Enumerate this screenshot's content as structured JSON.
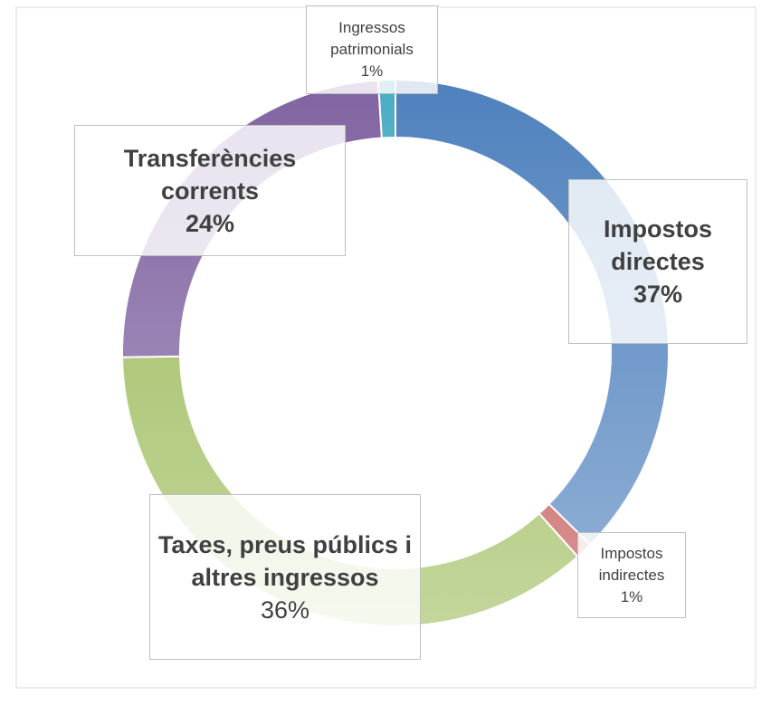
{
  "chart_data": {
    "type": "donut",
    "categories": [
      "Impostos directes",
      "Impostos indirectes",
      "Taxes, preus públics i altres ingressos",
      "Transferències corrents",
      "Ingressos patrimonials"
    ],
    "values": [
      37,
      1,
      36,
      24,
      1
    ],
    "value_labels": [
      "37%",
      "1%",
      "36%",
      "24%",
      "1%"
    ],
    "colors": [
      "#4f81bd",
      "#c0504d",
      "#9bbb59",
      "#8064a2",
      "#4bacc6"
    ]
  }
}
